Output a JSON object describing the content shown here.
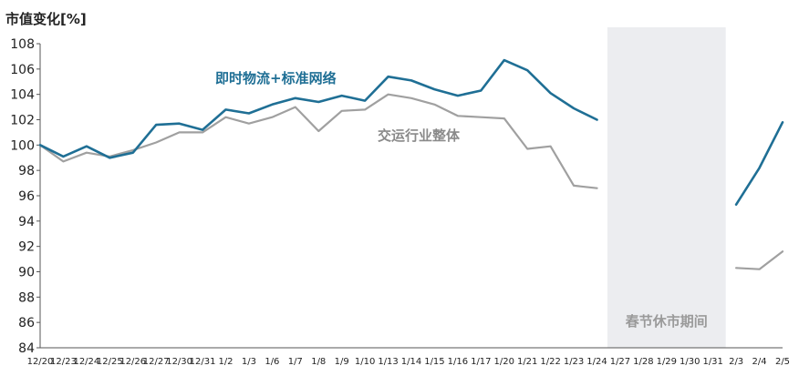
{
  "chart_data": {
    "type": "line",
    "ylabel": "市值变化[%]",
    "ylim": [
      84,
      108
    ],
    "yticks": [
      84,
      86,
      88,
      90,
      92,
      94,
      96,
      98,
      100,
      102,
      104,
      106,
      108
    ],
    "x": [
      "12/20",
      "12/23",
      "12/24",
      "12/25",
      "12/26",
      "12/27",
      "12/30",
      "12/31",
      "1/2",
      "1/3",
      "1/6",
      "1/7",
      "1/8",
      "1/9",
      "1/10",
      "1/13",
      "1/14",
      "1/15",
      "1/16",
      "1/17",
      "1/20",
      "1/21",
      "1/22",
      "1/23",
      "1/24",
      "1/27",
      "1/28",
      "1/29",
      "1/30",
      "1/31",
      "2/3",
      "2/4",
      "2/5"
    ],
    "series": [
      {
        "name": "即时物流+标准网络",
        "color": "#1f6f95",
        "values": [
          100.0,
          99.1,
          99.9,
          99.0,
          99.4,
          101.6,
          101.7,
          101.2,
          102.8,
          102.5,
          103.2,
          103.7,
          103.4,
          103.9,
          103.5,
          105.4,
          105.1,
          104.4,
          103.9,
          104.3,
          106.7,
          105.9,
          104.1,
          102.9,
          102.0,
          null,
          null,
          null,
          null,
          null,
          95.3,
          98.2,
          101.8
        ]
      },
      {
        "name": "交运行业整体",
        "color": "#a0a0a0",
        "values": [
          100.0,
          98.7,
          99.4,
          99.1,
          99.6,
          100.2,
          101.0,
          101.0,
          102.2,
          101.7,
          102.2,
          103.0,
          101.1,
          102.7,
          102.8,
          104.0,
          103.7,
          103.2,
          102.3,
          102.2,
          102.1,
          99.7,
          99.9,
          96.8,
          96.6,
          null,
          null,
          null,
          null,
          null,
          90.3,
          90.2,
          91.6
        ]
      }
    ],
    "shaded_period": {
      "from": "1/27",
      "to": "1/31",
      "label": "春节休市期间",
      "color": "#ecedf0"
    }
  }
}
